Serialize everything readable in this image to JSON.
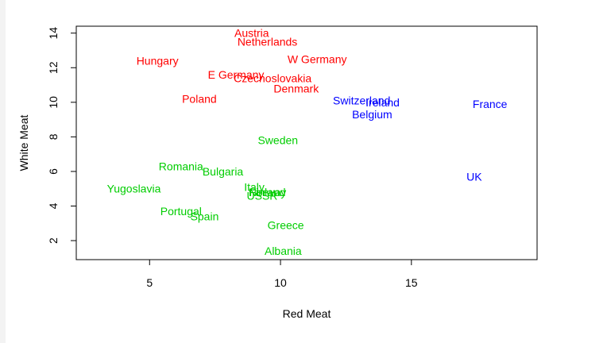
{
  "chart_data": {
    "type": "scatter",
    "title": "",
    "xlabel": "Red Meat",
    "ylabel": "White Meat",
    "xlim": [
      2.2,
      19.8
    ],
    "ylim": [
      0.9,
      14.4
    ],
    "x_ticks": [
      5,
      10,
      15
    ],
    "y_ticks": [
      2,
      4,
      6,
      8,
      10,
      12,
      14
    ],
    "x_tick_labels": [
      "5",
      "10",
      "15"
    ],
    "y_tick_labels": [
      "2",
      "4",
      "6",
      "8",
      "10",
      "12",
      "14"
    ],
    "grid": false,
    "colors": {
      "red": "#ff0000",
      "blue": "#0000ff",
      "green": "#00cd00"
    },
    "points": [
      {
        "label": "Austria",
        "x": 8.9,
        "y": 14.0,
        "color": "red"
      },
      {
        "label": "Netherlands",
        "x": 9.5,
        "y": 13.5,
        "color": "red"
      },
      {
        "label": "W Germany",
        "x": 11.4,
        "y": 12.5,
        "color": "red"
      },
      {
        "label": "Hungary",
        "x": 5.3,
        "y": 12.4,
        "color": "red"
      },
      {
        "label": "E Germany",
        "x": 8.3,
        "y": 11.6,
        "color": "red"
      },
      {
        "label": "Czechoslovakia",
        "x": 9.7,
        "y": 11.4,
        "color": "red"
      },
      {
        "label": "Denmark",
        "x": 10.6,
        "y": 10.8,
        "color": "red"
      },
      {
        "label": "Poland",
        "x": 6.9,
        "y": 10.2,
        "color": "red"
      },
      {
        "label": "Switzerland",
        "x": 13.1,
        "y": 10.1,
        "color": "blue"
      },
      {
        "label": "Ireland",
        "x": 13.9,
        "y": 10.0,
        "color": "blue"
      },
      {
        "label": "France",
        "x": 18.0,
        "y": 9.9,
        "color": "blue"
      },
      {
        "label": "Belgium",
        "x": 13.5,
        "y": 9.3,
        "color": "blue"
      },
      {
        "label": "UK",
        "x": 17.4,
        "y": 5.7,
        "color": "blue"
      },
      {
        "label": "Sweden",
        "x": 9.9,
        "y": 7.8,
        "color": "green"
      },
      {
        "label": "Romania",
        "x": 6.2,
        "y": 6.3,
        "color": "green"
      },
      {
        "label": "Bulgaria",
        "x": 7.8,
        "y": 6.0,
        "color": "green"
      },
      {
        "label": "Yugoslavia",
        "x": 4.4,
        "y": 5.0,
        "color": "green"
      },
      {
        "label": "Italy",
        "x": 9.0,
        "y": 5.1,
        "color": "green"
      },
      {
        "label": "Finland",
        "x": 9.5,
        "y": 4.8,
        "color": "green"
      },
      {
        "label": "Norway",
        "x": 9.5,
        "y": 4.8,
        "color": "green"
      },
      {
        "label": "USSR",
        "x": 9.3,
        "y": 4.6,
        "color": "green"
      },
      {
        "label": "Portugal",
        "x": 6.2,
        "y": 3.7,
        "color": "green"
      },
      {
        "label": "Spain",
        "x": 7.1,
        "y": 3.4,
        "color": "green"
      },
      {
        "label": "Greece",
        "x": 10.2,
        "y": 2.9,
        "color": "green"
      },
      {
        "label": "Albania",
        "x": 10.1,
        "y": 1.4,
        "color": "green"
      }
    ]
  }
}
